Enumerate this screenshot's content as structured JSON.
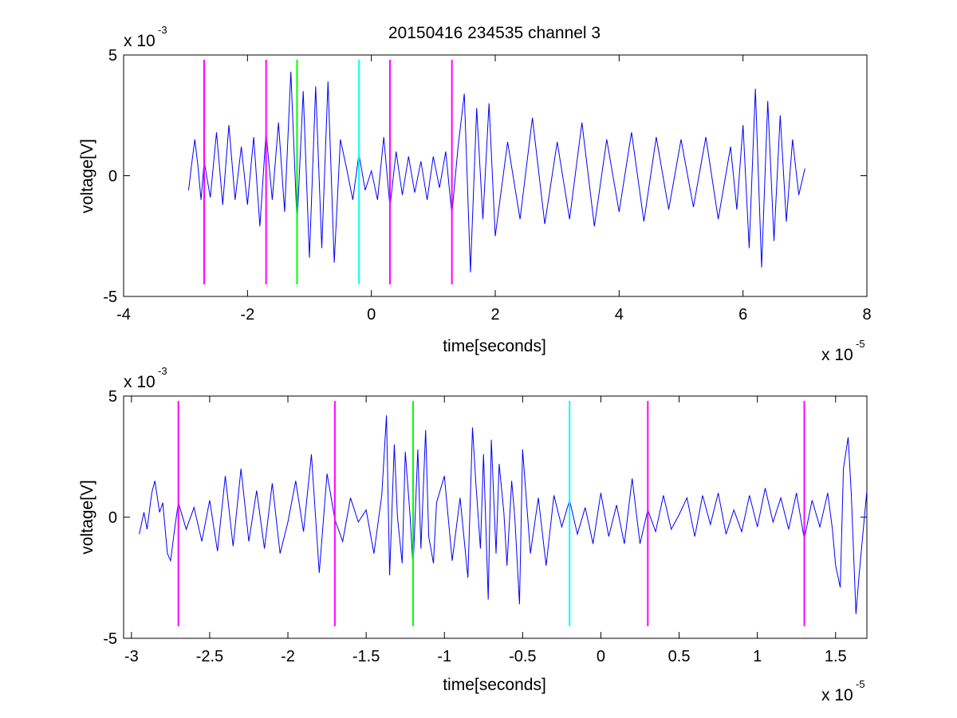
{
  "chart_data": [
    {
      "type": "line",
      "title": "20150416 234535 channel 3",
      "xlabel": "time[seconds]",
      "ylabel": "voltage[V]",
      "xlim": [
        -4,
        8
      ],
      "ylim": [
        -5,
        5
      ],
      "xticks": [
        "-4",
        "-2",
        "0",
        "2",
        "4",
        "6",
        "8"
      ],
      "yticks": [
        "-5",
        "0",
        "5"
      ],
      "x_multiplier": {
        "base": "x 10",
        "exp": "-5"
      },
      "y_multiplier": {
        "base": "x 10",
        "exp": "-3"
      },
      "grid": false,
      "series": [
        {
          "color": "#0000ff",
          "x": [
            -2.95,
            -2.9,
            -2.85,
            -2.8,
            -2.75,
            -2.7,
            -2.6,
            -2.5,
            -2.4,
            -2.3,
            -2.2,
            -2.1,
            -2.0,
            -1.9,
            -1.8,
            -1.7,
            -1.6,
            -1.5,
            -1.4,
            -1.3,
            -1.2,
            -1.1,
            -1.0,
            -0.9,
            -0.8,
            -0.7,
            -0.6,
            -0.5,
            -0.4,
            -0.3,
            -0.2,
            -0.1,
            0.0,
            0.1,
            0.2,
            0.3,
            0.4,
            0.5,
            0.6,
            0.7,
            0.8,
            0.9,
            1.0,
            1.1,
            1.2,
            1.3,
            1.4,
            1.5,
            1.6,
            1.7,
            1.8,
            1.9,
            2.0,
            2.2,
            2.4,
            2.6,
            2.8,
            3.0,
            3.2,
            3.4,
            3.6,
            3.8,
            4.0,
            4.2,
            4.4,
            4.6,
            4.8,
            5.0,
            5.2,
            5.4,
            5.6,
            5.8,
            5.9,
            6.0,
            6.1,
            6.2,
            6.3,
            6.4,
            6.5,
            6.6,
            6.7,
            6.8,
            6.9,
            7.0
          ],
          "y": [
            -0.6,
            0.5,
            1.5,
            0.4,
            -1.0,
            0.6,
            -0.9,
            1.8,
            -1.2,
            2.1,
            -1.0,
            1.2,
            -1.2,
            1.6,
            -2.1,
            1.8,
            -1.0,
            2.2,
            -1.5,
            4.3,
            -2.0,
            3.5,
            -3.4,
            3.7,
            -3.0,
            3.9,
            -3.6,
            1.5,
            0.3,
            -1.0,
            0.9,
            -0.6,
            0.2,
            -1.0,
            1.6,
            -1.3,
            1.0,
            -0.8,
            0.8,
            -0.7,
            0.6,
            -1.0,
            0.8,
            -0.5,
            1.0,
            -1.6,
            1.2,
            3.4,
            -4.0,
            2.8,
            -1.8,
            3.0,
            -2.5,
            1.4,
            -1.8,
            2.4,
            -2.0,
            1.4,
            -1.8,
            2.2,
            -2.1,
            1.5,
            -1.5,
            1.8,
            -1.9,
            1.6,
            -1.4,
            1.5,
            -1.3,
            1.6,
            -1.8,
            1.2,
            -1.4,
            2.1,
            -3.0,
            3.6,
            -3.8,
            3.1,
            -2.7,
            2.5,
            -1.9,
            1.5,
            -0.8,
            0.3
          ]
        }
      ],
      "markers": [
        {
          "x": -2.7,
          "color": "#ff00ff"
        },
        {
          "x": -1.7,
          "color": "#ff00ff"
        },
        {
          "x": -1.2,
          "color": "#00ff00"
        },
        {
          "x": -0.2,
          "color": "#00ffff"
        },
        {
          "x": 0.3,
          "color": "#ff00ff"
        },
        {
          "x": 1.3,
          "color": "#ff00ff"
        }
      ],
      "marker_yrange": [
        -4.5,
        4.8
      ]
    },
    {
      "type": "line",
      "title": "",
      "xlabel": "time[seconds]",
      "ylabel": "voltage[V]",
      "xlim": [
        -3.05,
        1.7
      ],
      "ylim": [
        -5,
        5
      ],
      "xticks": [
        "-3",
        "-2.5",
        "-2",
        "-1.5",
        "-1",
        "-0.5",
        "0",
        "0.5",
        "1",
        "1.5"
      ],
      "yticks": [
        "-5",
        "0",
        "5"
      ],
      "x_multiplier": {
        "base": "x 10",
        "exp": "-5"
      },
      "y_multiplier": {
        "base": "x 10",
        "exp": "-3"
      },
      "grid": false,
      "series": [
        {
          "color": "#0000ff",
          "x": [
            -2.95,
            -2.92,
            -2.9,
            -2.87,
            -2.85,
            -2.82,
            -2.8,
            -2.77,
            -2.75,
            -2.72,
            -2.7,
            -2.65,
            -2.6,
            -2.55,
            -2.5,
            -2.45,
            -2.4,
            -2.35,
            -2.3,
            -2.25,
            -2.2,
            -2.15,
            -2.1,
            -2.05,
            -2.0,
            -1.95,
            -1.9,
            -1.85,
            -1.8,
            -1.75,
            -1.7,
            -1.65,
            -1.6,
            -1.55,
            -1.5,
            -1.45,
            -1.4,
            -1.37,
            -1.35,
            -1.32,
            -1.3,
            -1.27,
            -1.25,
            -1.22,
            -1.2,
            -1.17,
            -1.15,
            -1.12,
            -1.1,
            -1.07,
            -1.05,
            -1.0,
            -0.95,
            -0.9,
            -0.85,
            -0.82,
            -0.8,
            -0.77,
            -0.75,
            -0.72,
            -0.7,
            -0.67,
            -0.65,
            -0.62,
            -0.6,
            -0.57,
            -0.55,
            -0.52,
            -0.5,
            -0.45,
            -0.4,
            -0.35,
            -0.3,
            -0.25,
            -0.2,
            -0.15,
            -0.1,
            -0.05,
            0.0,
            0.05,
            0.1,
            0.15,
            0.2,
            0.25,
            0.3,
            0.35,
            0.4,
            0.45,
            0.5,
            0.55,
            0.6,
            0.65,
            0.7,
            0.75,
            0.8,
            0.85,
            0.9,
            0.95,
            1.0,
            1.05,
            1.1,
            1.15,
            1.2,
            1.25,
            1.3,
            1.35,
            1.4,
            1.45,
            1.48,
            1.5,
            1.53,
            1.55,
            1.58,
            1.6,
            1.63,
            1.65,
            1.7
          ],
          "y": [
            -0.7,
            0.2,
            -0.5,
            1.0,
            1.5,
            0.2,
            0.6,
            -1.5,
            -1.8,
            -0.3,
            0.6,
            -0.5,
            0.4,
            -1.0,
            0.7,
            -1.4,
            1.7,
            -1.2,
            2.0,
            -1.0,
            1.1,
            -1.3,
            1.4,
            -1.5,
            -0.2,
            1.5,
            -0.6,
            2.6,
            -2.3,
            1.8,
            -0.1,
            -1.0,
            0.8,
            -0.2,
            0.3,
            -1.5,
            0.9,
            4.2,
            -2.4,
            3.0,
            0.0,
            -1.9,
            2.7,
            0.1,
            -2.1,
            2.8,
            -1.3,
            3.6,
            -0.8,
            -1.9,
            0.6,
            1.7,
            -1.8,
            0.8,
            -2.5,
            3.7,
            1.5,
            -1.3,
            2.6,
            -3.4,
            3.2,
            -1.5,
            2.2,
            0.2,
            -2.0,
            1.5,
            0.0,
            -3.6,
            2.8,
            -1.5,
            0.8,
            -2.0,
            0.9,
            -0.4,
            0.7,
            -0.7,
            0.4,
            -1.1,
            1.0,
            -0.8,
            0.5,
            -1.1,
            1.6,
            -1.1,
            0.3,
            -0.6,
            0.9,
            -0.5,
            0.1,
            0.8,
            -0.8,
            0.9,
            -0.3,
            1.0,
            -0.7,
            0.3,
            -0.6,
            0.9,
            -0.4,
            1.2,
            -0.2,
            0.8,
            -0.5,
            1.0,
            -0.9,
            0.7,
            -0.4,
            1.0,
            -0.5,
            -2.0,
            -2.9,
            2.0,
            3.3,
            1.0,
            -4.0,
            -2.4,
            1.1
          ]
        }
      ],
      "markers": [
        {
          "x": -2.7,
          "color": "#ff00ff"
        },
        {
          "x": -1.7,
          "color": "#ff00ff"
        },
        {
          "x": -1.2,
          "color": "#00ff00"
        },
        {
          "x": -0.2,
          "color": "#00ffff"
        },
        {
          "x": 0.3,
          "color": "#ff00ff"
        },
        {
          "x": 1.3,
          "color": "#ff00ff"
        }
      ],
      "marker_yrange": [
        -4.5,
        4.8
      ]
    }
  ]
}
